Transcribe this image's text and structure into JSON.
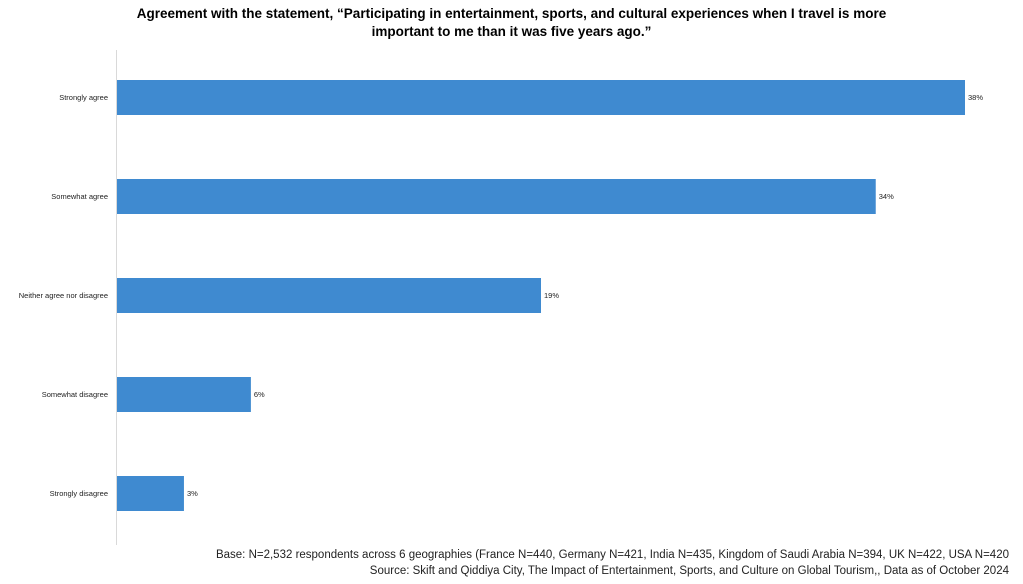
{
  "chart_data": {
    "type": "bar",
    "orientation": "horizontal",
    "title_line1": "Agreement with the statement, “Participating in entertainment, sports, and cultural experiences when I travel is more",
    "title_line2": "important to me than it was five years ago.”",
    "categories": [
      "Strongly agree",
      "Somewhat agree",
      "Neither agree nor disagree",
      "Somewhat disagree",
      "Strongly disagree"
    ],
    "values": [
      38,
      34,
      19,
      6,
      3
    ],
    "value_labels": [
      "38%",
      "34%",
      "19%",
      "6%",
      "3%"
    ],
    "xlim": [
      0,
      38
    ],
    "bar_color": "#3f8ad0",
    "grid": false,
    "legend": "none"
  },
  "footer": {
    "base": "Base: N=2,532 respondents across 6 geographies (France N=440, Germany N=421, India N=435, Kingdom of Saudi Arabia N=394, UK N=422, USA N=420",
    "source": "Source: Skift and Qiddiya City, The Impact of Entertainment, Sports, and Culture on Global Tourism,, Data as of October 2024"
  }
}
